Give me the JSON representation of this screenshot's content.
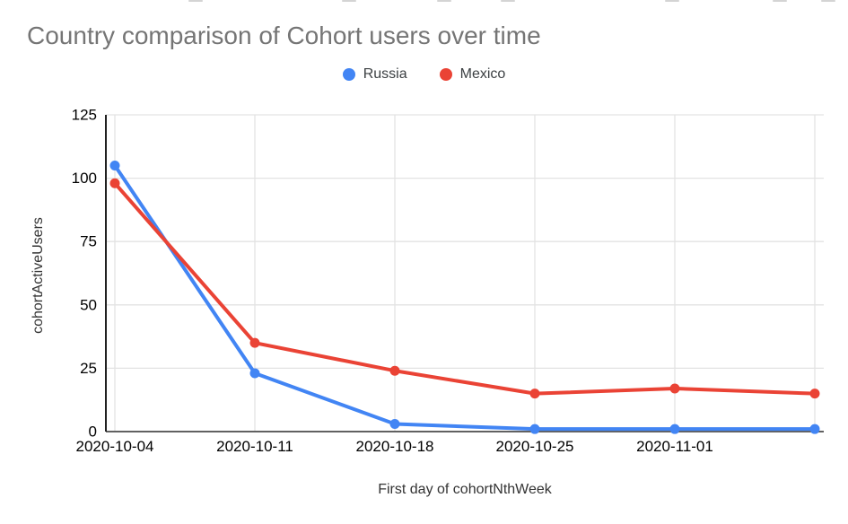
{
  "chart_data": {
    "type": "line",
    "title": "Country comparison of Cohort users over time",
    "xlabel": "First day of cohortNthWeek",
    "ylabel": "cohortActiveUsers",
    "categories": [
      "2020-10-04",
      "2020-10-11",
      "2020-10-18",
      "2020-10-25",
      "2020-11-01",
      ""
    ],
    "series": [
      {
        "name": "Russia",
        "color": "#4285F4",
        "values": [
          105,
          23,
          3,
          1,
          1,
          1
        ]
      },
      {
        "name": "Mexico",
        "color": "#EA4335",
        "values": [
          98,
          35,
          24,
          15,
          17,
          15
        ]
      }
    ],
    "ylim": [
      0,
      125
    ],
    "yticks": [
      0,
      25,
      50,
      75,
      100,
      125
    ],
    "grid": true,
    "legend_position": "top-center"
  },
  "legend": {
    "items": [
      {
        "label": "Russia",
        "color": "#4285F4",
        "icon": "circle"
      },
      {
        "label": "Mexico",
        "color": "#EA4335",
        "icon": "circle"
      }
    ]
  },
  "style_colors": {
    "title_text": "#757575",
    "tick_text": "#000000",
    "axis_title_text": "#333333",
    "gridline": "#e3e3e3",
    "baseline": "#616161",
    "y_axis_line": "#212121"
  }
}
